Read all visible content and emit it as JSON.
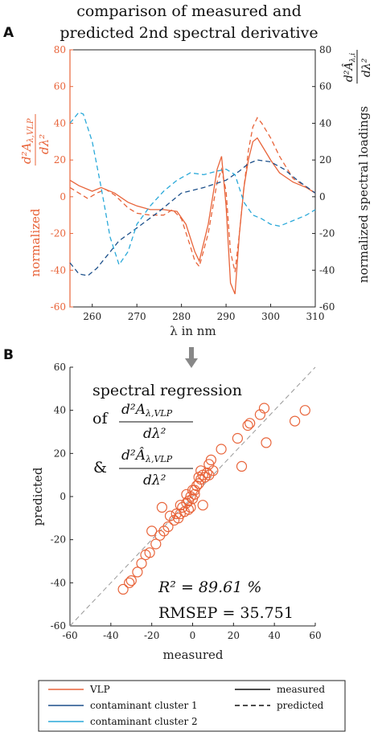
{
  "title": [
    "comparison of measured and",
    "predicted 2nd spectral derivative"
  ],
  "colors": {
    "vlp": "#E8643A",
    "cluster1": "#1B4F8A",
    "cluster2": "#2AA9D9",
    "grid_gray": "#999999"
  },
  "panel_a": {
    "letter": "A",
    "xlabel": "λ in nm",
    "ylabel_left_prefix": "normalized",
    "ylabel_right": "normalized spectral loadings",
    "xticks": [
      "260",
      "270",
      "280",
      "290",
      "300",
      "310"
    ],
    "yticks_left": [
      "80",
      "60",
      "40",
      "20",
      "0",
      "-20",
      "-40",
      "-60"
    ],
    "yticks_right": [
      "80",
      "60",
      "40",
      "20",
      "0",
      "-20",
      "-40",
      "-60"
    ]
  },
  "panel_b": {
    "letter": "B",
    "xlabel": "measured",
    "ylabel": "predicted",
    "xticks": [
      "-60",
      "-40",
      "-20",
      "0",
      "20",
      "40",
      "60"
    ],
    "yticks": [
      "60",
      "40",
      "20",
      "0",
      "-20",
      "-40",
      "-60"
    ],
    "annotation_title": "spectral regression",
    "annotation_of": "of",
    "annotation_amp": "&",
    "r2": "R² = 89.61 %",
    "rmsep": "RMSEP = 35.751"
  },
  "legend": {
    "vlp": "VLP",
    "cluster1": "contaminant cluster 1",
    "cluster2": "contaminant cluster 2",
    "measured": "measured",
    "predicted": "predicted"
  },
  "chart_data": [
    {
      "type": "line",
      "panel": "A",
      "xlim": [
        255,
        310
      ],
      "ylim": [
        -60,
        80
      ],
      "ylim_right": [
        -60,
        80
      ],
      "series": [
        {
          "name": "VLP",
          "style": "measured",
          "x": [
            255,
            257,
            260,
            262,
            265,
            268,
            270,
            273,
            276,
            279,
            281,
            283,
            284,
            286,
            288,
            289,
            290,
            291,
            292,
            293,
            294,
            295,
            296,
            297,
            298,
            300,
            302,
            305,
            308,
            310
          ],
          "y": [
            9,
            6,
            3,
            5,
            2,
            -3,
            -5,
            -7,
            -7,
            -8,
            -15,
            -30,
            -35,
            -15,
            15,
            22,
            -5,
            -47,
            -53,
            -20,
            5,
            20,
            30,
            32,
            28,
            20,
            13,
            8,
            5,
            2
          ]
        },
        {
          "name": "VLP",
          "style": "predicted",
          "x": [
            255,
            257,
            259,
            261,
            263,
            265,
            268,
            270,
            273,
            276,
            278,
            280,
            282,
            283,
            284,
            286,
            288,
            289,
            290,
            291,
            292,
            293,
            294,
            295,
            296,
            297,
            298,
            300,
            302,
            305,
            310
          ],
          "y": [
            5,
            2,
            -1,
            2,
            4,
            1,
            -6,
            -9,
            -10,
            -10,
            -7,
            -12,
            -27,
            -35,
            -38,
            -20,
            8,
            15,
            3,
            -30,
            -41,
            -20,
            5,
            25,
            38,
            43,
            40,
            32,
            22,
            10,
            2
          ]
        },
        {
          "name": "contaminant cluster 1",
          "style": "predicted",
          "x": [
            255,
            257,
            259,
            261,
            263,
            266,
            270,
            275,
            280,
            285,
            290,
            293,
            295,
            297,
            300,
            303,
            306,
            310
          ],
          "y": [
            -36,
            -42,
            -43,
            -39,
            -33,
            -24,
            -17,
            -8,
            2,
            5,
            9,
            14,
            18,
            20,
            19,
            15,
            9,
            2
          ]
        },
        {
          "name": "contaminant cluster 2",
          "style": "predicted",
          "x": [
            255,
            257,
            258,
            260,
            262,
            264,
            266,
            268,
            270,
            273,
            276,
            279,
            282,
            285,
            288,
            290,
            292,
            294,
            296,
            298,
            300,
            302,
            305,
            308,
            310
          ],
          "y": [
            40,
            46,
            45,
            30,
            5,
            -22,
            -37,
            -30,
            -15,
            -5,
            3,
            9,
            13,
            12,
            14,
            15,
            12,
            -3,
            -10,
            -12,
            -15,
            -16,
            -13,
            -10,
            -7
          ]
        }
      ]
    },
    {
      "type": "scatter",
      "panel": "B",
      "xlim": [
        -60,
        60
      ],
      "ylim": [
        -60,
        60
      ],
      "reference_line": "y = x",
      "series": [
        {
          "name": "VLP",
          "points": [
            [
              -34,
              -43
            ],
            [
              -31,
              -40
            ],
            [
              -30,
              -39
            ],
            [
              -27,
              -35
            ],
            [
              -25,
              -31
            ],
            [
              -23,
              -27
            ],
            [
              -21,
              -26
            ],
            [
              -20,
              -16
            ],
            [
              -18,
              -22
            ],
            [
              -16,
              -18
            ],
            [
              -14,
              -16
            ],
            [
              -12,
              -14
            ],
            [
              -11,
              -9
            ],
            [
              -9,
              -11
            ],
            [
              -8,
              -8
            ],
            [
              -7,
              -10
            ],
            [
              -6,
              -8
            ],
            [
              -5,
              -5
            ],
            [
              -4,
              -7
            ],
            [
              -3,
              -3
            ],
            [
              -2,
              -2
            ],
            [
              -1,
              0
            ],
            [
              0,
              -1
            ],
            [
              1,
              3
            ],
            [
              2,
              5
            ],
            [
              3,
              9
            ],
            [
              4,
              8
            ],
            [
              4,
              12
            ],
            [
              5,
              10
            ],
            [
              6,
              9
            ],
            [
              7,
              11
            ],
            [
              8,
              10
            ],
            [
              8,
              15
            ],
            [
              9,
              17
            ],
            [
              10,
              12
            ],
            [
              14,
              22
            ],
            [
              22,
              27
            ],
            [
              24,
              14
            ],
            [
              27,
              33
            ],
            [
              28,
              34
            ],
            [
              33,
              38
            ],
            [
              35,
              41
            ],
            [
              36,
              25
            ],
            [
              50,
              35
            ],
            [
              55,
              40
            ],
            [
              -3,
              1
            ],
            [
              -1,
              -5
            ],
            [
              0,
              3
            ],
            [
              1,
              1
            ],
            [
              3,
              6
            ],
            [
              5,
              -4
            ],
            [
              -15,
              -5
            ],
            [
              -6,
              -4
            ],
            [
              -2,
              -6
            ]
          ]
        }
      ]
    }
  ]
}
